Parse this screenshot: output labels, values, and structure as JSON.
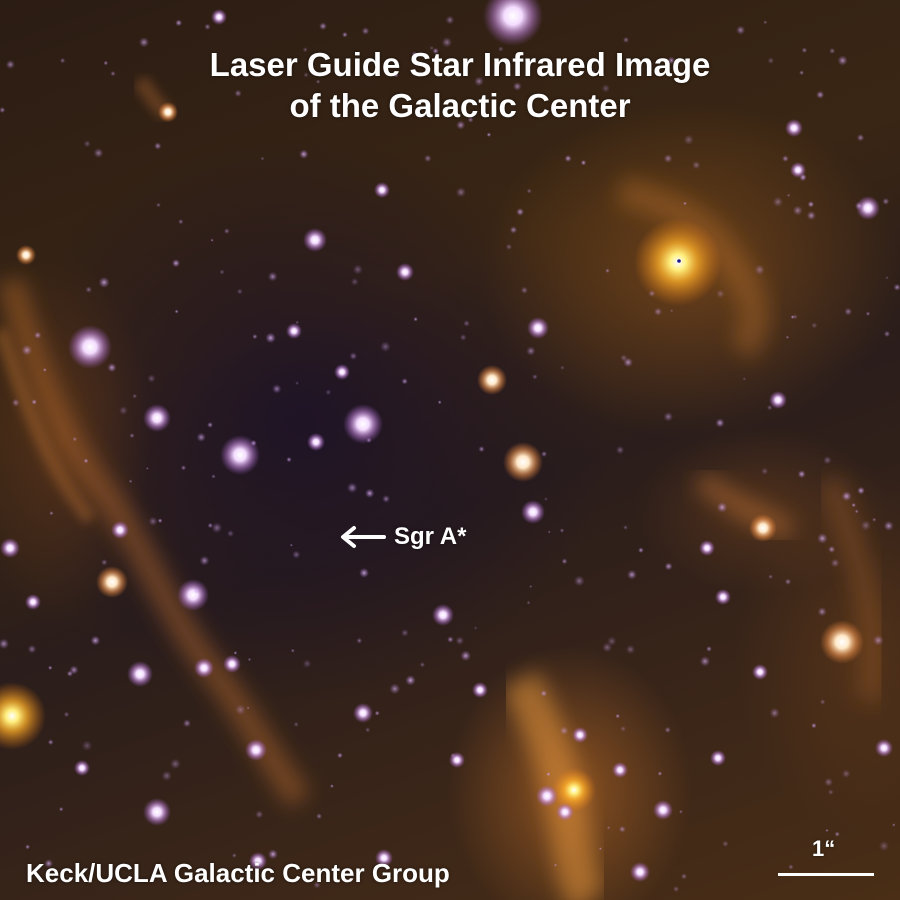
{
  "image": {
    "title_line1": "Laser Guide Star Infrared Image",
    "title_line2": "of the Galactic Center",
    "target_label": "Sgr A*",
    "credit": "Keck/UCLA Galactic Center Group",
    "scale_label": "1“"
  },
  "icons": {
    "target_arrow": "left-arrow-icon"
  },
  "colors": {
    "background_dark": "#2a1c14",
    "dust_orange": "#b8702a",
    "star_core": "#ffffff",
    "star_halo_violet": "#c48ad8",
    "bright_star_orange": "#ffb030",
    "text": "#ffffff"
  }
}
